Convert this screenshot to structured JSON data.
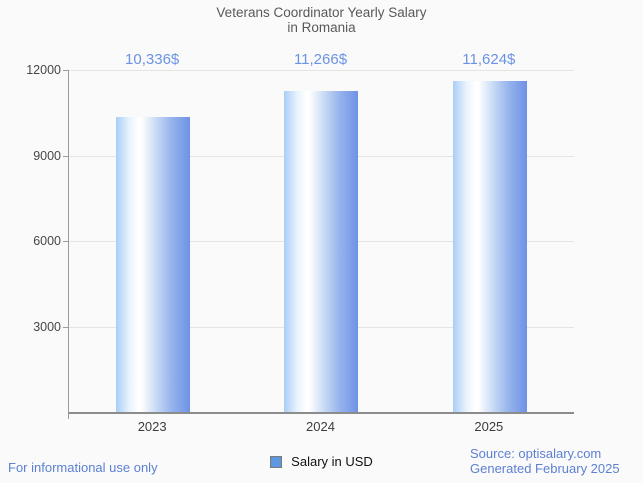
{
  "header": {
    "title_line1": "Veterans Coordinator Yearly Salary",
    "title_line2": "in Romania"
  },
  "chart_data": {
    "type": "bar",
    "title": "Veterans Coordinator Yearly Salary in Romania",
    "categories": [
      "2023",
      "2024",
      "2025"
    ],
    "series": [
      {
        "name": "Salary in USD",
        "values": [
          10336,
          11266,
          11624
        ]
      }
    ],
    "value_labels": [
      "10,336$",
      "11,266$",
      "11,624$"
    ],
    "yticks": [
      12000,
      9000,
      6000,
      3000
    ],
    "ytick_labels": [
      "12000",
      "9000",
      "6000",
      "3000"
    ],
    "ylim": [
      0,
      12000
    ],
    "xlabel": "",
    "ylabel": "",
    "grid": true,
    "legend_position": "bottom",
    "colors": {
      "bar_gradient_left": "#A9CEF6",
      "bar_gradient_highlight": "#FFFFFF",
      "bar_gradient_right": "#6E92E6",
      "value_label_color": "#6B93E3",
      "title_color": "#59595B",
      "axis_label_color": "#474747",
      "gridline_color": "#E4E4E4",
      "background_color": "#FAFAFA"
    }
  },
  "legend": {
    "label": "Salary in USD",
    "swatch_color": "#5C97E0"
  },
  "footer": {
    "left_note": "For informational use only",
    "source": "Source: optisalary.com",
    "generated": "Generated February 2025",
    "link_color": "#5D80D2"
  }
}
